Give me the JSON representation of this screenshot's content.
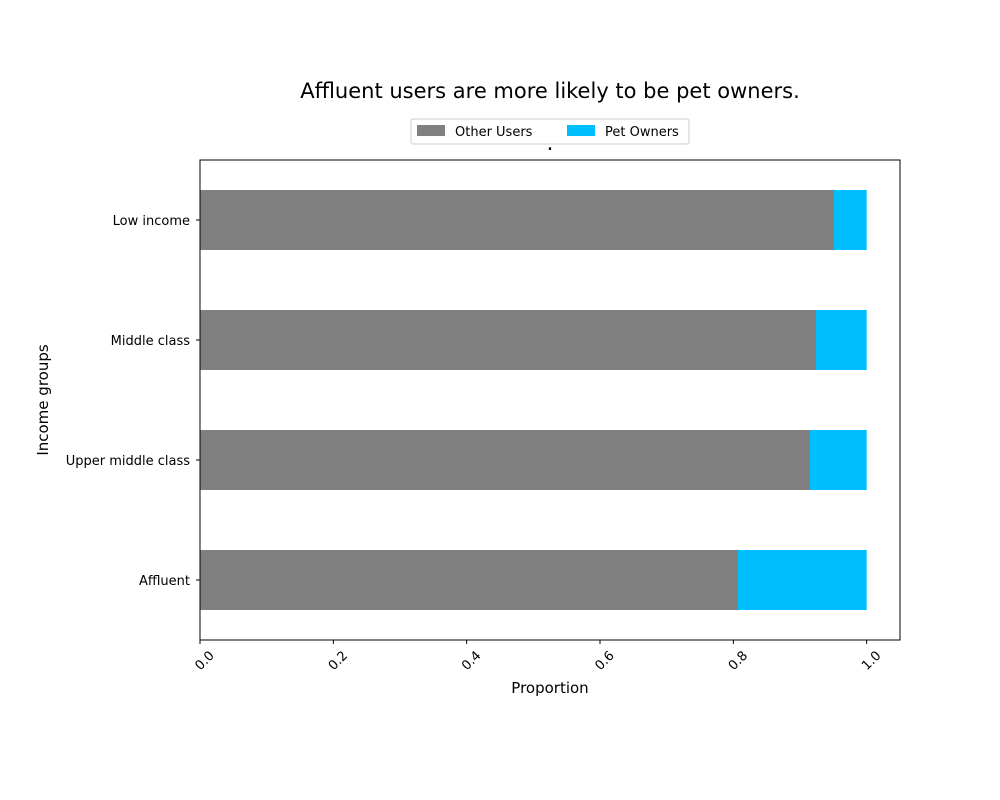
{
  "chart_data": {
    "type": "bar",
    "orientation": "horizontal",
    "stacked": true,
    "title": "Affluent users are more likely to be pet owners.",
    "subtitle": ".",
    "xlabel": "Proportion",
    "ylabel": "Income groups",
    "xlim": [
      0,
      1.05
    ],
    "xticks": [
      "0.0",
      "0.2",
      "0.4",
      "0.6",
      "0.8",
      "1.0"
    ],
    "categories": [
      "Low income",
      "Middle class",
      "Upper middle class",
      "Affluent"
    ],
    "series": [
      {
        "name": "Other Users",
        "color": "#808080",
        "values": [
          0.951,
          0.924,
          0.915,
          0.807
        ]
      },
      {
        "name": "Pet Owners",
        "color": "#00BFFF",
        "values": [
          0.049,
          0.076,
          0.085,
          0.193
        ]
      }
    ],
    "legend_position": "top-center",
    "grid": false
  }
}
